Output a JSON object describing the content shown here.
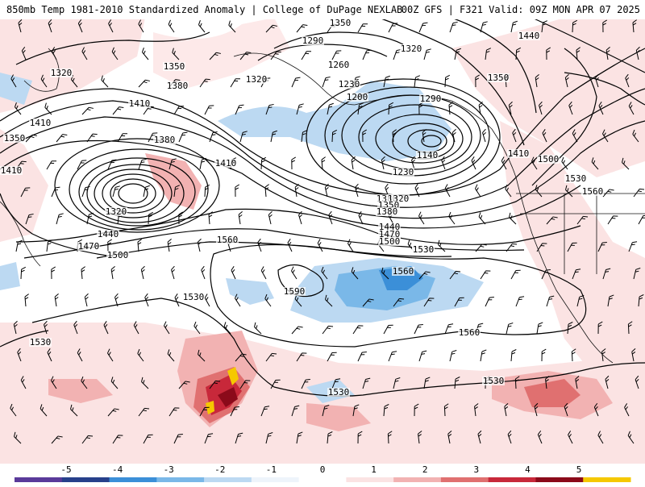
{
  "header": {
    "title": "850mb Temp 1981-2010 Standardized Anomaly | College of DuPage NEXLAB",
    "run_info": "00Z GFS | F321 Valid: 09Z MON APR 07 2025"
  },
  "contour_labels": [
    "1350",
    "1440",
    "1290",
    "1320",
    "1320",
    "1350",
    "1260",
    "1350",
    "1380",
    "1230",
    "1290",
    "1320",
    "1200",
    "1410",
    "1410",
    "1140",
    "1410",
    "1380",
    "1500",
    "1410",
    "1230",
    "1530",
    "1350",
    "1560",
    "1380",
    "1410",
    "1320",
    "1320",
    "1350",
    "1380",
    "1530",
    "1440",
    "1470",
    "1440",
    "1470",
    "1500",
    "1500",
    "1560",
    "1530",
    "1560",
    "1590",
    "1530",
    "1530",
    "1560",
    "1530",
    "1530"
  ],
  "colorbar": {
    "labels": [
      "-5",
      "-4",
      "-3",
      "-2",
      "-1",
      "0",
      "1",
      "2",
      "3",
      "4",
      "5"
    ],
    "colors": [
      "#5a3a9a",
      "#27408b",
      "#3b8fd8",
      "#7ab8e8",
      "#bcd9f2",
      "#eef4fb",
      "#ffffff",
      "#fbe3e3",
      "#f2b2b2",
      "#e07070",
      "#c8283a",
      "#8b0a1a",
      "#f5c800"
    ]
  }
}
